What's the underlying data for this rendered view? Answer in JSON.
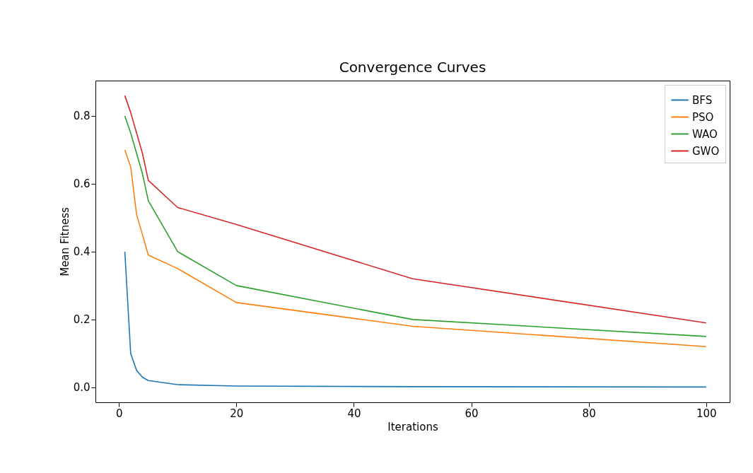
{
  "chart_data": {
    "type": "line",
    "title": "Convergence Curves",
    "xlabel": "Iterations",
    "ylabel": "Mean Fitness",
    "x": [
      1,
      2,
      3,
      4,
      5,
      10,
      20,
      50,
      100
    ],
    "series": [
      {
        "name": "BFS",
        "color": "#1f77b4",
        "values": [
          0.4,
          0.1,
          0.05,
          0.03,
          0.02,
          0.008,
          0.004,
          0.002,
          0.001
        ]
      },
      {
        "name": "PSO",
        "color": "#ff7f0e",
        "values": [
          0.7,
          0.65,
          0.51,
          0.45,
          0.39,
          0.35,
          0.25,
          0.18,
          0.12
        ]
      },
      {
        "name": "WAO",
        "color": "#2ca02c",
        "values": [
          0.8,
          0.75,
          0.69,
          0.63,
          0.55,
          0.4,
          0.3,
          0.2,
          0.15
        ]
      },
      {
        "name": "GWO",
        "color": "#d62728",
        "values": [
          0.86,
          0.81,
          0.75,
          0.69,
          0.61,
          0.53,
          0.48,
          0.32,
          0.19
        ]
      }
    ],
    "xlim": [
      -4,
      104
    ],
    "xticks": [
      0,
      20,
      40,
      60,
      80,
      100
    ],
    "ylim": [
      -0.044,
      0.904
    ],
    "yticks": [
      {
        "value": 0,
        "label": "0.0"
      },
      {
        "value": 0.2,
        "label": "0.2"
      },
      {
        "value": 0.4,
        "label": "0.4"
      },
      {
        "value": 0.6,
        "label": "0.6"
      },
      {
        "value": 0.8,
        "label": "0.8"
      }
    ],
    "grid": false,
    "legend": "top right",
    "marker": "none",
    "line_style": "solid"
  }
}
